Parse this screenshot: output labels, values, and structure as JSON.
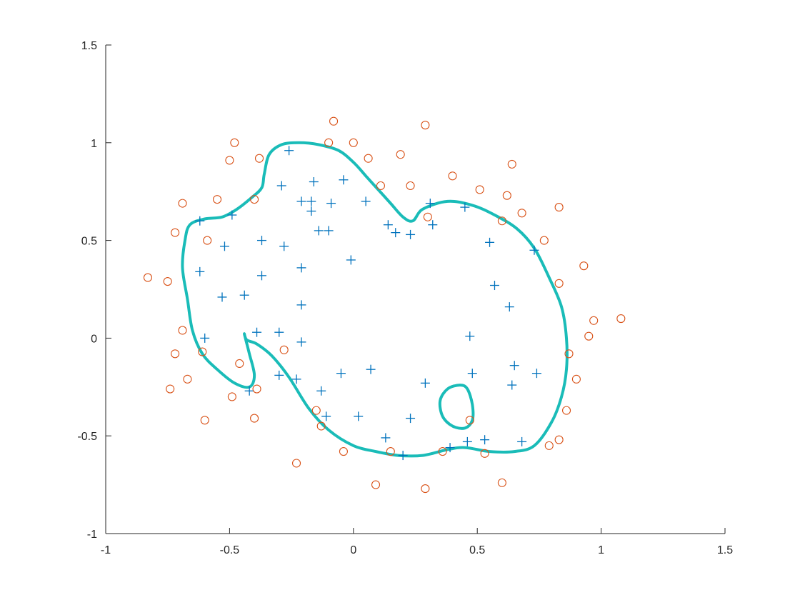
{
  "chart_data": {
    "type": "scatter",
    "title": "",
    "xlabel": "",
    "ylabel": "",
    "xlim": [
      -1,
      1.5
    ],
    "ylim": [
      -1,
      1.5
    ],
    "xticks": [
      -1,
      -0.5,
      0,
      0.5,
      1,
      1.5
    ],
    "yticks": [
      -1,
      -0.5,
      0,
      0.5,
      1,
      1.5
    ],
    "xtick_labels": [
      "-1",
      "-0.5",
      "0",
      "0.5",
      "1",
      "1.5"
    ],
    "ytick_labels": [
      "-1",
      "-0.5",
      "0",
      "0.5",
      "1",
      "1.5"
    ],
    "grid": false,
    "legend": "none",
    "series": [
      {
        "marker": "plus",
        "color": "#0072BD",
        "points": [
          [
            -0.62,
            0.6
          ],
          [
            -0.49,
            0.63
          ],
          [
            -0.52,
            0.47
          ],
          [
            -0.62,
            0.34
          ],
          [
            -0.53,
            0.21
          ],
          [
            -0.44,
            0.22
          ],
          [
            -0.37,
            0.32
          ],
          [
            -0.37,
            0.5
          ],
          [
            -0.28,
            0.47
          ],
          [
            -0.29,
            0.78
          ],
          [
            -0.26,
            0.96
          ],
          [
            -0.21,
            0.7
          ],
          [
            -0.17,
            0.7
          ],
          [
            -0.17,
            0.65
          ],
          [
            -0.16,
            0.8
          ],
          [
            -0.14,
            0.55
          ],
          [
            -0.1,
            0.55
          ],
          [
            -0.09,
            0.69
          ],
          [
            -0.04,
            0.81
          ],
          [
            -0.21,
            0.36
          ],
          [
            -0.21,
            0.17
          ],
          [
            -0.01,
            0.4
          ],
          [
            0.05,
            0.7
          ],
          [
            0.14,
            0.58
          ],
          [
            0.17,
            0.54
          ],
          [
            0.23,
            0.53
          ],
          [
            0.31,
            0.69
          ],
          [
            0.32,
            0.58
          ],
          [
            0.45,
            0.67
          ],
          [
            0.55,
            0.49
          ],
          [
            0.57,
            0.27
          ],
          [
            0.63,
            0.16
          ],
          [
            0.73,
            0.45
          ],
          [
            -0.6,
            0.0
          ],
          [
            -0.39,
            0.03
          ],
          [
            -0.3,
            0.03
          ],
          [
            -0.21,
            -0.02
          ],
          [
            -0.3,
            -0.19
          ],
          [
            -0.23,
            -0.21
          ],
          [
            -0.42,
            -0.27
          ],
          [
            -0.13,
            -0.27
          ],
          [
            -0.05,
            -0.18
          ],
          [
            0.07,
            -0.16
          ],
          [
            -0.11,
            -0.4
          ],
          [
            0.02,
            -0.4
          ],
          [
            0.13,
            -0.51
          ],
          [
            0.2,
            -0.6
          ],
          [
            0.23,
            -0.41
          ],
          [
            0.29,
            -0.23
          ],
          [
            0.39,
            -0.56
          ],
          [
            0.46,
            -0.53
          ],
          [
            0.47,
            0.01
          ],
          [
            0.48,
            -0.18
          ],
          [
            0.53,
            -0.52
          ],
          [
            0.64,
            -0.24
          ],
          [
            0.65,
            -0.14
          ],
          [
            0.68,
            -0.53
          ],
          [
            0.74,
            -0.18
          ]
        ]
      },
      {
        "marker": "circle",
        "color": "#D95319",
        "points": [
          [
            -0.08,
            1.11
          ],
          [
            0.29,
            1.09
          ],
          [
            -0.48,
            1.0
          ],
          [
            -0.1,
            1.0
          ],
          [
            0.0,
            1.0
          ],
          [
            -0.5,
            0.91
          ],
          [
            -0.38,
            0.92
          ],
          [
            0.06,
            0.92
          ],
          [
            0.19,
            0.94
          ],
          [
            0.64,
            0.89
          ],
          [
            0.4,
            0.83
          ],
          [
            0.11,
            0.78
          ],
          [
            0.23,
            0.78
          ],
          [
            0.51,
            0.76
          ],
          [
            0.62,
            0.73
          ],
          [
            -0.55,
            0.71
          ],
          [
            -0.4,
            0.71
          ],
          [
            -0.69,
            0.69
          ],
          [
            0.68,
            0.64
          ],
          [
            0.83,
            0.67
          ],
          [
            0.6,
            0.6
          ],
          [
            0.3,
            0.62
          ],
          [
            -0.72,
            0.54
          ],
          [
            -0.59,
            0.5
          ],
          [
            0.77,
            0.5
          ],
          [
            0.93,
            0.37
          ],
          [
            -0.83,
            0.31
          ],
          [
            -0.75,
            0.29
          ],
          [
            0.83,
            0.28
          ],
          [
            0.97,
            0.09
          ],
          [
            1.08,
            0.1
          ],
          [
            0.95,
            0.01
          ],
          [
            -0.69,
            0.04
          ],
          [
            -0.61,
            -0.07
          ],
          [
            -0.72,
            -0.08
          ],
          [
            -0.28,
            -0.06
          ],
          [
            0.87,
            -0.08
          ],
          [
            -0.46,
            -0.13
          ],
          [
            0.9,
            -0.21
          ],
          [
            -0.67,
            -0.21
          ],
          [
            -0.74,
            -0.26
          ],
          [
            -0.39,
            -0.26
          ],
          [
            -0.49,
            -0.3
          ],
          [
            0.86,
            -0.37
          ],
          [
            -0.15,
            -0.37
          ],
          [
            -0.4,
            -0.41
          ],
          [
            -0.6,
            -0.42
          ],
          [
            0.47,
            -0.42
          ],
          [
            -0.13,
            -0.45
          ],
          [
            0.79,
            -0.55
          ],
          [
            0.83,
            -0.52
          ],
          [
            -0.04,
            -0.58
          ],
          [
            0.15,
            -0.58
          ],
          [
            0.36,
            -0.58
          ],
          [
            0.53,
            -0.59
          ],
          [
            -0.23,
            -0.64
          ],
          [
            0.09,
            -0.75
          ],
          [
            0.29,
            -0.77
          ],
          [
            0.6,
            -0.74
          ]
        ]
      },
      {
        "marker": "line",
        "color": "#1ABCB8",
        "description": "decision boundary",
        "closed_curves": [
          [
            [
              -0.36,
              0.84
            ],
            [
              -0.34,
              0.94
            ],
            [
              -0.29,
              0.99
            ],
            [
              -0.22,
              1.0
            ],
            [
              -0.14,
              0.99
            ],
            [
              -0.06,
              0.96
            ],
            [
              0.0,
              0.9
            ],
            [
              0.05,
              0.83
            ],
            [
              0.1,
              0.76
            ],
            [
              0.15,
              0.69
            ],
            [
              0.2,
              0.62
            ],
            [
              0.24,
              0.6
            ],
            [
              0.28,
              0.66
            ],
            [
              0.38,
              0.7
            ],
            [
              0.48,
              0.68
            ],
            [
              0.57,
              0.63
            ],
            [
              0.66,
              0.56
            ],
            [
              0.73,
              0.46
            ],
            [
              0.79,
              0.31
            ],
            [
              0.84,
              0.16
            ],
            [
              0.86,
              0.0
            ],
            [
              0.86,
              -0.16
            ],
            [
              0.84,
              -0.3
            ],
            [
              0.8,
              -0.43
            ],
            [
              0.73,
              -0.55
            ],
            [
              0.65,
              -0.58
            ],
            [
              0.55,
              -0.58
            ],
            [
              0.45,
              -0.56
            ],
            [
              0.38,
              -0.57
            ],
            [
              0.28,
              -0.6
            ],
            [
              0.18,
              -0.6
            ],
            [
              0.09,
              -0.58
            ],
            [
              0.0,
              -0.55
            ],
            [
              -0.1,
              -0.47
            ],
            [
              -0.18,
              -0.36
            ],
            [
              -0.26,
              -0.2
            ],
            [
              -0.33,
              -0.09
            ],
            [
              -0.39,
              -0.03
            ],
            [
              -0.43,
              -0.01
            ],
            [
              -0.44,
              0.02
            ],
            [
              -0.42,
              -0.08
            ],
            [
              -0.4,
              -0.19
            ],
            [
              -0.42,
              -0.25
            ],
            [
              -0.48,
              -0.23
            ],
            [
              -0.55,
              -0.16
            ],
            [
              -0.61,
              -0.08
            ],
            [
              -0.65,
              0.04
            ],
            [
              -0.67,
              0.2
            ],
            [
              -0.69,
              0.36
            ],
            [
              -0.68,
              0.5
            ],
            [
              -0.66,
              0.58
            ],
            [
              -0.6,
              0.61
            ],
            [
              -0.53,
              0.62
            ],
            [
              -0.47,
              0.66
            ],
            [
              -0.41,
              0.72
            ],
            [
              -0.37,
              0.77
            ]
          ],
          [
            [
              0.46,
              -0.26
            ],
            [
              0.48,
              -0.34
            ],
            [
              0.48,
              -0.42
            ],
            [
              0.45,
              -0.46
            ],
            [
              0.4,
              -0.45
            ],
            [
              0.36,
              -0.4
            ],
            [
              0.35,
              -0.32
            ],
            [
              0.38,
              -0.26
            ],
            [
              0.43,
              -0.24
            ]
          ]
        ]
      }
    ]
  }
}
